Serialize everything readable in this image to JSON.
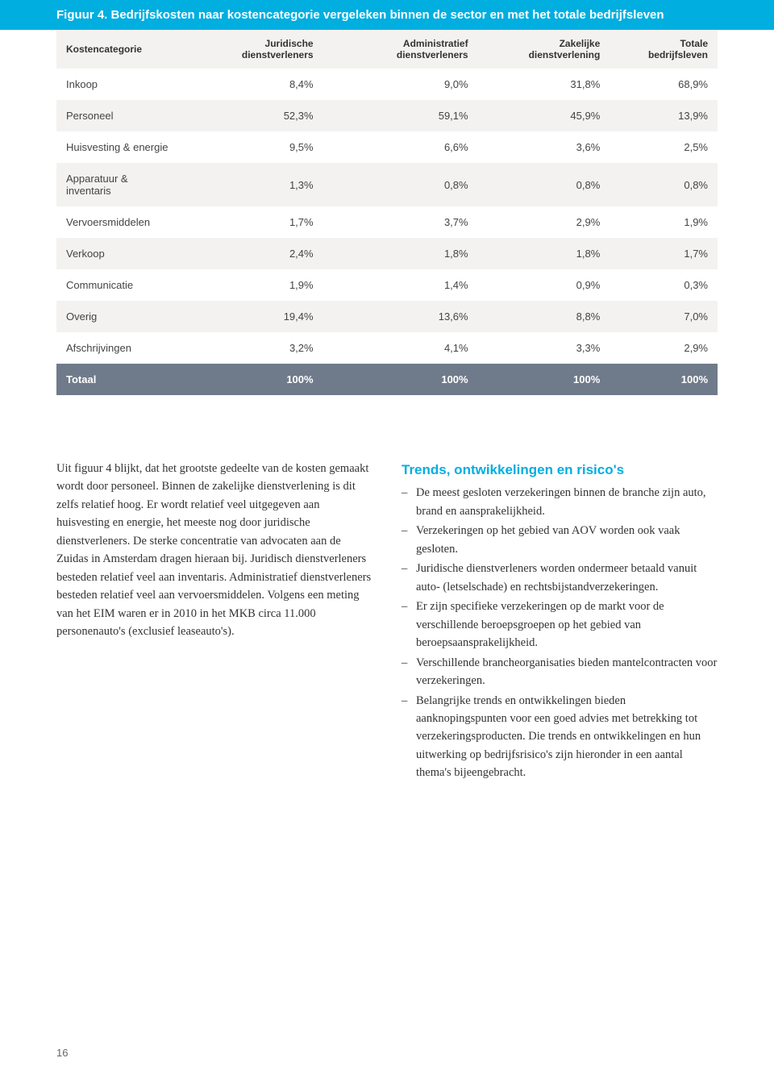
{
  "figure": {
    "title": "Figuur 4. Bedrijfskosten naar kostencategorie vergeleken binnen de sector en met het totale bedrijfsleven",
    "columns": [
      "Kostencategorie",
      "Juridische dienstverleners",
      "Administratief dienstverleners",
      "Zakelijke dienstverlening",
      "Totale bedrijfsleven"
    ],
    "rows": [
      {
        "label": "Inkoop",
        "values": [
          "8,4%",
          "9,0%",
          "31,8%",
          "68,9%"
        ],
        "alt": false
      },
      {
        "label": "Personeel",
        "values": [
          "52,3%",
          "59,1%",
          "45,9%",
          "13,9%"
        ],
        "alt": true
      },
      {
        "label": "Huisvesting & energie",
        "values": [
          "9,5%",
          "6,6%",
          "3,6%",
          "2,5%"
        ],
        "alt": false
      },
      {
        "label": "Apparatuur & inventaris",
        "values": [
          "1,3%",
          "0,8%",
          "0,8%",
          "0,8%"
        ],
        "alt": true
      },
      {
        "label": "Vervoersmiddelen",
        "values": [
          "1,7%",
          "3,7%",
          "2,9%",
          "1,9%"
        ],
        "alt": false
      },
      {
        "label": "Verkoop",
        "values": [
          "2,4%",
          "1,8%",
          "1,8%",
          "1,7%"
        ],
        "alt": true
      },
      {
        "label": "Communicatie",
        "values": [
          "1,9%",
          "1,4%",
          "0,9%",
          "0,3%"
        ],
        "alt": false
      },
      {
        "label": "Overig",
        "values": [
          "19,4%",
          "13,6%",
          "8,8%",
          "7,0%"
        ],
        "alt": true
      },
      {
        "label": "Afschrijvingen",
        "values": [
          "3,2%",
          "4,1%",
          "3,3%",
          "2,9%"
        ],
        "alt": false
      }
    ],
    "total": {
      "label": "Totaal",
      "values": [
        "100%",
        "100%",
        "100%",
        "100%"
      ]
    },
    "colors": {
      "title_bar_bg": "#00aee0",
      "title_bar_text": "#ffffff",
      "header_bg": "#f3f2f1",
      "row_alt_bg": "#f3f2f1",
      "total_row_bg": "#6f7b8b",
      "total_row_text": "#ffffff"
    },
    "font_sizes": {
      "title": 15,
      "header": 12,
      "cell": 13
    }
  },
  "body": {
    "left_paragraph": "Uit figuur 4 blijkt, dat het grootste gedeelte van de kosten gemaakt wordt door personeel. Binnen de zakelijke dienstverlening is dit zelfs relatief hoog. Er wordt relatief veel uitgegeven aan huisvesting en energie, het meeste nog door juridische dienstverleners. De sterke concentratie van advocaten aan de Zuidas in Amsterdam dragen hieraan bij. Juridisch dienstverleners besteden relatief veel aan inventaris. Administratief dienstverleners besteden relatief veel aan vervoersmiddelen. Volgens een meting van het EIM waren er in 2010 in het MKB circa 11.000 personenauto's (exclusief leaseauto's).",
    "right_heading": "Trends, ontwikkelingen en risico's",
    "right_items": [
      "De meest gesloten verzekeringen binnen de branche zijn auto, brand en aansprakelijkheid.",
      "Verzekeringen op het gebied van AOV worden ook vaak gesloten.",
      "Juridische dienstverleners worden ondermeer betaald vanuit auto- (letselschade) en rechtsbijstandverzekeringen.",
      "Er zijn specifieke verzekeringen op de markt voor de verschillende beroepsgroepen op het gebied van beroepsaansprakelijkheid.",
      "Verschillende brancheorganisaties bieden mantelcontracten voor verzekeringen.",
      "Belangrijke trends en ontwikkelingen bieden aanknopingspunten voor een goed advies met betrekking tot verzekeringsproducten. Die trends en ontwikkelingen en hun uitwerking op bedrijfsrisico's zijn hieronder in een aantal thema's bijeengebracht."
    ]
  },
  "page_number": "16"
}
